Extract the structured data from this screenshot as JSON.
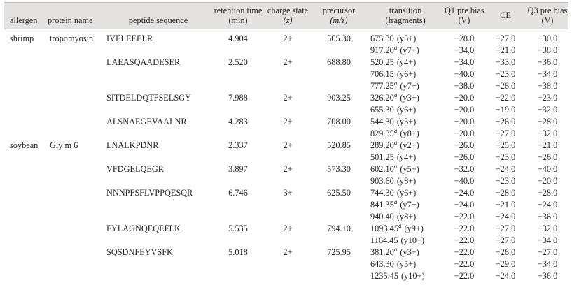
{
  "table": {
    "headers": [
      {
        "key": "allergen",
        "line1": "allergen",
        "line2": "",
        "italic_line2": false
      },
      {
        "key": "protein-name",
        "line1": "protein name",
        "line2": "",
        "italic_line2": false
      },
      {
        "key": "peptide-sequence",
        "line1": "peptide sequence",
        "line2": "",
        "italic_line2": false
      },
      {
        "key": "retention-time",
        "line1": "retention time",
        "line2": "(min)",
        "italic_line2": false
      },
      {
        "key": "charge-state",
        "line1": "charge state",
        "line2": "(z)",
        "italic_line2": true
      },
      {
        "key": "precursor",
        "line1": "precursor",
        "line2": "(m/z)",
        "italic_line2": true
      },
      {
        "key": "transition",
        "line1": "transition",
        "line2": "(fragments)",
        "italic_line2": false
      },
      {
        "key": "q1-pre-bias",
        "line1": "Q1 pre bias",
        "line2": "(V)",
        "italic_line2": false
      },
      {
        "key": "ce",
        "line1": "CE",
        "line2": "",
        "italic_line2": false
      },
      {
        "key": "q3-pre-bias",
        "line1": "Q3 pre bias",
        "line2": "(V)",
        "italic_line2": false
      }
    ],
    "rows": [
      {
        "allergen": "shrimp",
        "protein": "tropomyosin",
        "peptide": "IVELEEELR",
        "rt": "4.904",
        "charge": "2+",
        "precursor": "565.30",
        "mz": "675.30",
        "sup": "",
        "frag": "(y5+)",
        "q1": "−28.0",
        "ce": "−27.0",
        "q3": "−30.0"
      },
      {
        "allergen": "",
        "protein": "",
        "peptide": "",
        "rt": "",
        "charge": "",
        "precursor": "",
        "mz": "917.20",
        "sup": "a",
        "frag": "(y7+)",
        "q1": "−34.0",
        "ce": "−21.0",
        "q3": "−38.0"
      },
      {
        "allergen": "",
        "protein": "",
        "peptide": "LAEASQAADESER",
        "rt": "2.520",
        "charge": "2+",
        "precursor": "688.80",
        "mz": "520.25",
        "sup": "",
        "frag": "(y4+)",
        "q1": "−34.0",
        "ce": "−33.0",
        "q3": "−36.0"
      },
      {
        "allergen": "",
        "protein": "",
        "peptide": "",
        "rt": "",
        "charge": "",
        "precursor": "",
        "mz": "706.15",
        "sup": "",
        "frag": "(y6+)",
        "q1": "−40.0",
        "ce": "−23.0",
        "q3": "−34.0"
      },
      {
        "allergen": "",
        "protein": "",
        "peptide": "",
        "rt": "",
        "charge": "",
        "precursor": "",
        "mz": "777.25",
        "sup": "a",
        "frag": "(y7+)",
        "q1": "−38.0",
        "ce": "−26.0",
        "q3": "−38.0"
      },
      {
        "allergen": "",
        "protein": "",
        "peptide": "SITDELDQTFSELSGY",
        "rt": "7.988",
        "charge": "2+",
        "precursor": "903.25",
        "mz": "326.20",
        "sup": "a",
        "frag": "(y3+)",
        "q1": "−20.0",
        "ce": "−22.0",
        "q3": "−23.0"
      },
      {
        "allergen": "",
        "protein": "",
        "peptide": "",
        "rt": "",
        "charge": "",
        "precursor": "",
        "mz": "655.30",
        "sup": "",
        "frag": "(y6+)",
        "q1": "−20.0",
        "ce": "−19.0",
        "q3": "−32.0"
      },
      {
        "allergen": "",
        "protein": "",
        "peptide": "ALSNAEGEVAALNR",
        "rt": "4.283",
        "charge": "2+",
        "precursor": "708.00",
        "mz": "544.30",
        "sup": "",
        "frag": "(y5+)",
        "q1": "−20.0",
        "ce": "−26.0",
        "q3": "−28.0"
      },
      {
        "allergen": "",
        "protein": "",
        "peptide": "",
        "rt": "",
        "charge": "",
        "precursor": "",
        "mz": "829.35",
        "sup": "a",
        "frag": "(y8+)",
        "q1": "−20.0",
        "ce": "−27.0",
        "q3": "−32.0"
      },
      {
        "allergen": "soybean",
        "protein": "Gly m 6",
        "peptide": "LNALKPDNR",
        "rt": "2.337",
        "charge": "2+",
        "precursor": "520.85",
        "mz": "289.20",
        "sup": "a",
        "frag": "(y2+)",
        "q1": "−26.0",
        "ce": "−25.0",
        "q3": "−21.0"
      },
      {
        "allergen": "",
        "protein": "",
        "peptide": "",
        "rt": "",
        "charge": "",
        "precursor": "",
        "mz": "501.25",
        "sup": "",
        "frag": "(y4+)",
        "q1": "−26.0",
        "ce": "−23.0",
        "q3": "−26.0"
      },
      {
        "allergen": "",
        "protein": "",
        "peptide": "VFDGELQEGR",
        "rt": "3.897",
        "charge": "2+",
        "precursor": "573.30",
        "mz": "602.10",
        "sup": "a",
        "frag": "(y5+)",
        "q1": "−32.0",
        "ce": "−24.0",
        "q3": "−40.0"
      },
      {
        "allergen": "",
        "protein": "",
        "peptide": "",
        "rt": "",
        "charge": "",
        "precursor": "",
        "mz": "903.60",
        "sup": "",
        "frag": "(y8+)",
        "q1": "−40.0",
        "ce": "−23.0",
        "q3": "−20.0"
      },
      {
        "allergen": "",
        "protein": "",
        "peptide": "NNNPFSFLVPPQESQR",
        "rt": "6.746",
        "charge": "3+",
        "precursor": "625.50",
        "mz": "744.30",
        "sup": "",
        "frag": "(y6+)",
        "q1": "−24.0",
        "ce": "−28.0",
        "q3": "−28.0"
      },
      {
        "allergen": "",
        "protein": "",
        "peptide": "",
        "rt": "",
        "charge": "",
        "precursor": "",
        "mz": "841.35",
        "sup": "a",
        "frag": "(y7+)",
        "q1": "−24.0",
        "ce": "−21.0",
        "q3": "−24.0"
      },
      {
        "allergen": "",
        "protein": "",
        "peptide": "",
        "rt": "",
        "charge": "",
        "precursor": "",
        "mz": "940.40",
        "sup": "",
        "frag": "(y8+)",
        "q1": "−22.0",
        "ce": "−24.0",
        "q3": "−36.0"
      },
      {
        "allergen": "",
        "protein": "",
        "peptide": "FYLAGNQEQEFLK",
        "rt": "5.535",
        "charge": "2+",
        "precursor": "794.10",
        "mz": "1093.45",
        "sup": "a",
        "frag": "(y9+)",
        "q1": "−22.0",
        "ce": "−27.0",
        "q3": "−32.0"
      },
      {
        "allergen": "",
        "protein": "",
        "peptide": "",
        "rt": "",
        "charge": "",
        "precursor": "",
        "mz": "1164.45",
        "sup": "",
        "frag": "(y10+)",
        "q1": "−22.0",
        "ce": "−27.0",
        "q3": "−34.0"
      },
      {
        "allergen": "",
        "protein": "",
        "peptide": "SQSDNFEYVSFK",
        "rt": "5.018",
        "charge": "2+",
        "precursor": "725.95",
        "mz": "381.20",
        "sup": "a",
        "frag": "(y3+)",
        "q1": "−22.0",
        "ce": "−26.0",
        "q3": "−27.0"
      },
      {
        "allergen": "",
        "protein": "",
        "peptide": "",
        "rt": "",
        "charge": "",
        "precursor": "",
        "mz": "643.30",
        "sup": "",
        "frag": "(y5+)",
        "q1": "−22.0",
        "ce": "−29.0",
        "q3": "−34.0"
      },
      {
        "allergen": "",
        "protein": "",
        "peptide": "",
        "rt": "",
        "charge": "",
        "precursor": "",
        "mz": "1235.45",
        "sup": "",
        "frag": "(y10+)",
        "q1": "−22.0",
        "ce": "−24.0",
        "q3": "−36.0"
      }
    ],
    "colors": {
      "header_background": "#e3e2e1",
      "header_top_rule": "#bcbab8",
      "header_bottom_rule": "#cfcdcb",
      "text": "#252525"
    }
  }
}
